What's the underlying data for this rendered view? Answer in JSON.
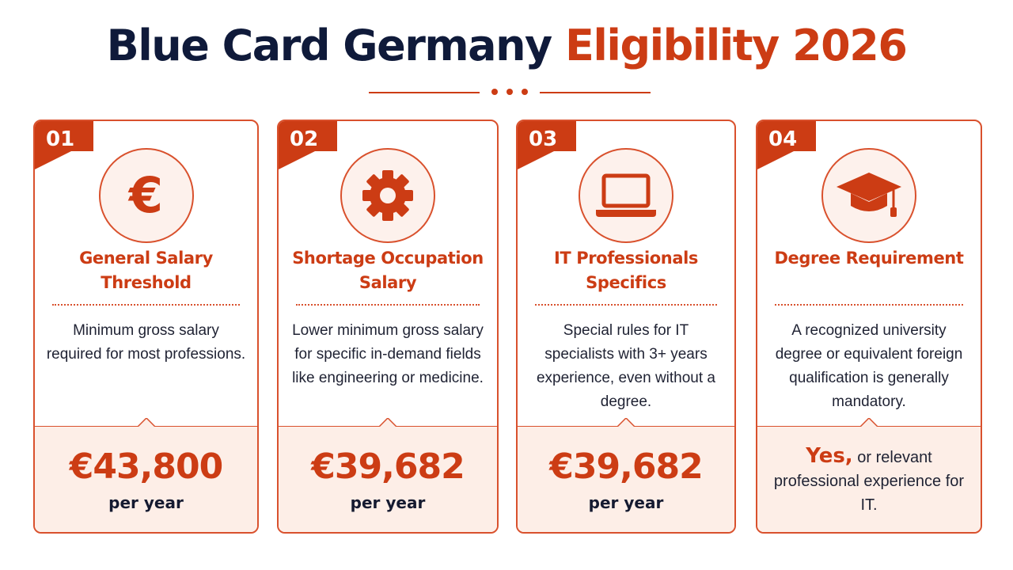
{
  "title": {
    "main": "Blue Card Germany",
    "accent": "Eligibility 2026"
  },
  "colors": {
    "accent": "#cc3c14",
    "navy": "#0f1a3a",
    "panel": "#fdeee7"
  },
  "cards": [
    {
      "number": "01",
      "icon": "euro-icon",
      "euro_symbol": "€",
      "title": "General Salary Threshold",
      "description": "Minimum gross salary required for most professions.",
      "amount": "€43,800",
      "period": "per year"
    },
    {
      "number": "02",
      "icon": "gear-icon",
      "title": "Shortage Occupation Salary",
      "description": "Lower minimum gross salary for specific in-demand fields like engineering or medicine.",
      "amount": "€39,682",
      "period": "per year"
    },
    {
      "number": "03",
      "icon": "laptop-icon",
      "title": "IT Professionals Specifics",
      "description": "Special rules for IT specialists with 3+ years experience, even without a degree.",
      "amount": "€39,682",
      "period": "per year"
    },
    {
      "number": "04",
      "icon": "graduation-cap-icon",
      "title": "Degree Requirement",
      "description": "A recognized university degree or equivalent foreign qualification is generally mandatory.",
      "answer": "Yes,",
      "answer_detail": "or relevant professional experience for IT."
    }
  ]
}
